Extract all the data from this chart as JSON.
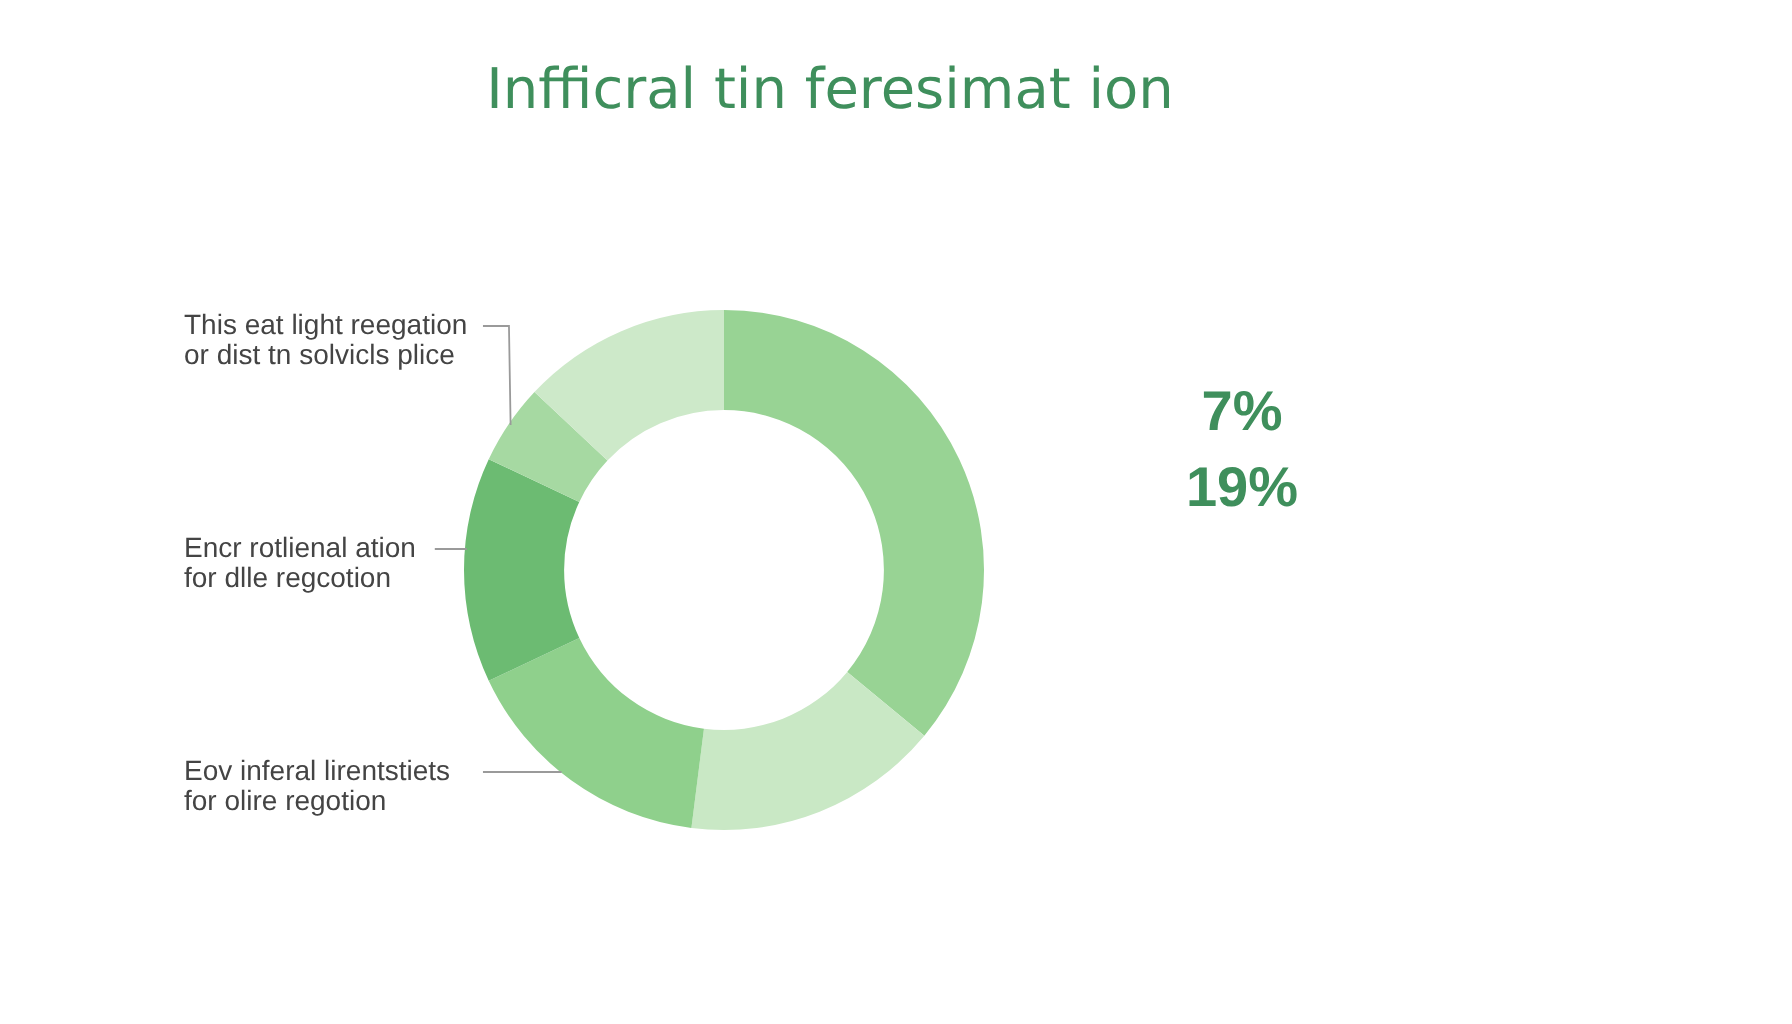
{
  "chart_data": {
    "type": "donut",
    "title": "Infficral tin feresimat ion",
    "categories": [
      null,
      null,
      "Eov inferal lirentstiets for olire regotion",
      "Encr rotlienal ation for dlle regcotion",
      "This eat light reegation or dist tn solvicls plice",
      null
    ],
    "values": [
      36,
      16,
      16,
      14,
      5,
      13
    ],
    "colors": [
      "#98d394",
      "#c9e8c5",
      "#8fd08c",
      "#6cbb72",
      "#a6d9a2",
      "#cde9c9"
    ],
    "annotations": [
      "7%",
      "19%"
    ]
  }
}
